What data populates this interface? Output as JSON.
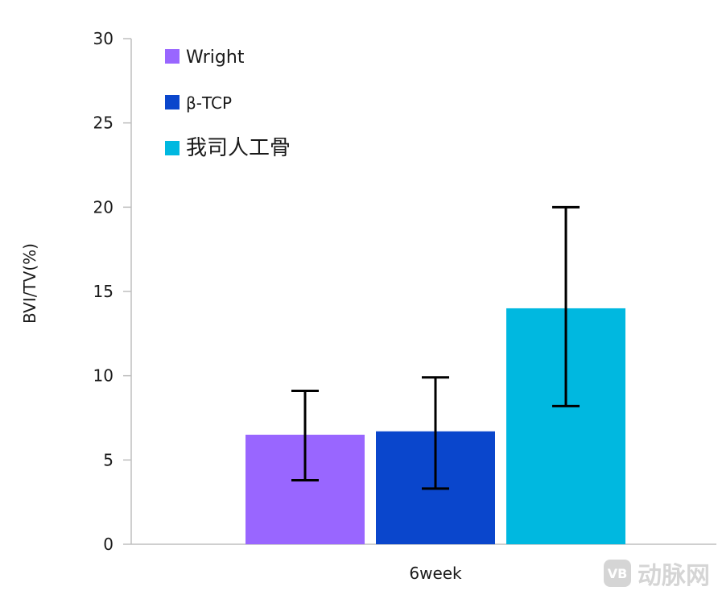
{
  "chart_data": {
    "type": "bar",
    "categories": [
      "6week"
    ],
    "ylabel": "BVI/TV(%)",
    "ylim": [
      0,
      30
    ],
    "yticks": [
      0,
      5,
      10,
      15,
      20,
      25,
      30
    ],
    "grid": false,
    "legend_position": "top-left",
    "series": [
      {
        "name": "Wright",
        "color": "#9966ff",
        "values": [
          6.5
        ],
        "error_low": [
          3.8
        ],
        "error_high": [
          9.1
        ]
      },
      {
        "name": "β-TCP",
        "color": "#0a46cc",
        "values": [
          6.7
        ],
        "error_low": [
          3.3
        ],
        "error_high": [
          9.9
        ]
      },
      {
        "name": "我司人工骨",
        "color": "#00b8e0",
        "values": [
          14.0
        ],
        "error_low": [
          8.2
        ],
        "error_high": [
          20.0
        ]
      }
    ]
  },
  "watermark": {
    "logo_text": "VB",
    "text": "动脉网"
  }
}
